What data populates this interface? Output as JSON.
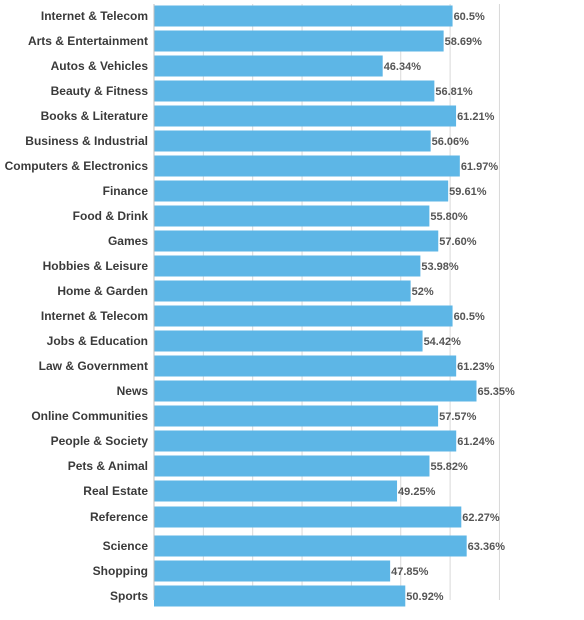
{
  "chart_data": {
    "type": "bar",
    "orientation": "horizontal",
    "categories": [
      "Internet & Telecom",
      "Arts & Entertainment",
      "Autos & Vehicles",
      "Beauty & Fitness",
      "Books & Literature",
      "Business & Industrial",
      "Computers & Electronics",
      "Finance",
      "Food & Drink",
      "Games",
      "Hobbies & Leisure",
      "Home & Garden",
      "Internet & Telecom",
      "Jobs & Education",
      "Law & Government",
      "News",
      "Online Communities",
      "People & Society",
      "Pets & Animal",
      "Real Estate",
      "Reference",
      "Science",
      "Shopping",
      "Sports"
    ],
    "values": [
      60.5,
      58.69,
      46.34,
      56.81,
      61.21,
      56.06,
      61.97,
      59.61,
      55.8,
      57.6,
      53.98,
      52,
      60.5,
      54.42,
      61.23,
      65.35,
      57.57,
      61.24,
      55.82,
      49.25,
      62.27,
      63.36,
      47.85,
      50.92
    ],
    "value_labels": [
      "60.5%",
      "58.69%",
      "46.34%",
      "56.81%",
      "61.21%",
      "56.06%",
      "61.97%",
      "59.61%",
      "55.80%",
      "57.60%",
      "53.98%",
      "52%",
      "60.5%",
      "54.42%",
      "61.23%",
      "65.35%",
      "57.57%",
      "61.24%",
      "55.82%",
      "49.25%",
      "62.27%",
      "63.36%",
      "47.85%",
      "50.92%"
    ],
    "xlim": [
      0,
      70
    ],
    "grid": true,
    "bar_color": "#5db6e6",
    "title": "",
    "xlabel": "",
    "ylabel": ""
  }
}
